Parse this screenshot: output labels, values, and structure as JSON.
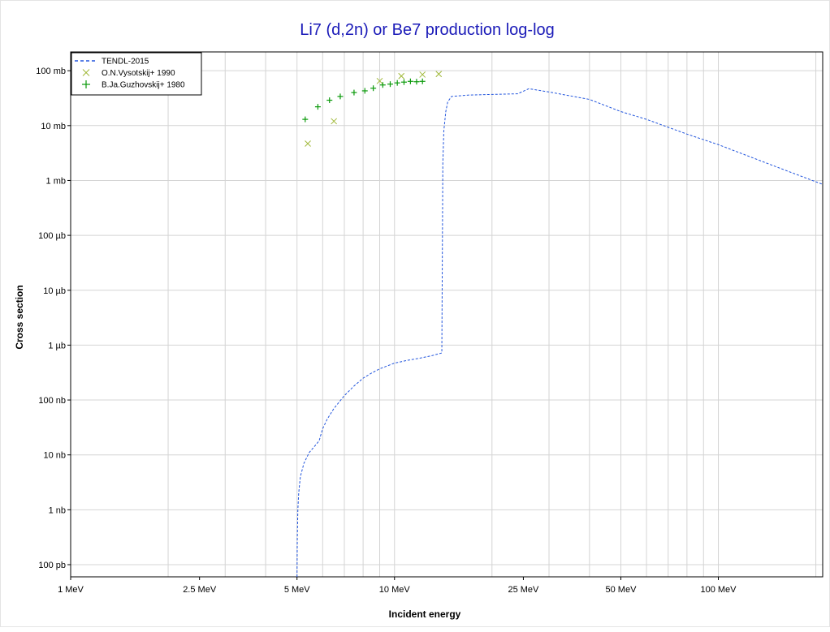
{
  "chart_data": {
    "type": "scatter",
    "title": "Li7 (d,2n) or Be7 production log-log",
    "xlabel": "Incident energy",
    "ylabel": "Cross section",
    "xscale": "log",
    "yscale": "log",
    "xlim_mev": [
      1,
      210
    ],
    "ylim_barn": [
      6e-11,
      0.22
    ],
    "grid": true,
    "legend_position": "top-left",
    "colors": {
      "tendl": "#2255dd",
      "vysotskij": "#a0b838",
      "guzhovskij": "#0a9a0a",
      "title": "#1a1ab8"
    },
    "x_ticks": [
      {
        "value": 1,
        "label": "1 MeV"
      },
      {
        "value": 2.5,
        "label": "2.5 MeV"
      },
      {
        "value": 5,
        "label": "5 MeV"
      },
      {
        "value": 10,
        "label": "10 MeV"
      },
      {
        "value": 25,
        "label": "25 MeV"
      },
      {
        "value": 50,
        "label": "50 MeV"
      },
      {
        "value": 100,
        "label": "100 MeV"
      }
    ],
    "y_ticks": [
      {
        "value": 1e-10,
        "label": "100 pb"
      },
      {
        "value": 1e-09,
        "label": "1 nb"
      },
      {
        "value": 1e-08,
        "label": "10 nb"
      },
      {
        "value": 1e-07,
        "label": "100 nb"
      },
      {
        "value": 1e-06,
        "label": "1 µb"
      },
      {
        "value": 1e-05,
        "label": "10 µb"
      },
      {
        "value": 0.0001,
        "label": "100 µb"
      },
      {
        "value": 0.001,
        "label": "1 mb"
      },
      {
        "value": 0.01,
        "label": "10 mb"
      },
      {
        "value": 0.1,
        "label": "100 mb"
      }
    ],
    "series": [
      {
        "name": "TENDL-2015",
        "style": "dashed-line",
        "points": [
          [
            5.0,
            6e-11
          ],
          [
            5.01,
            3e-10
          ],
          [
            5.03,
            1e-09
          ],
          [
            5.06,
            2e-09
          ],
          [
            5.12,
            4e-09
          ],
          [
            5.25,
            7e-09
          ],
          [
            5.45,
            1.1e-08
          ],
          [
            5.7,
            1.5e-08
          ],
          [
            5.85,
            1.8e-08
          ],
          [
            6.0,
            3e-08
          ],
          [
            6.2,
            4.5e-08
          ],
          [
            6.5,
            7e-08
          ],
          [
            7.0,
            1.2e-07
          ],
          [
            7.5,
            1.8e-07
          ],
          [
            8.0,
            2.5e-07
          ],
          [
            8.5,
            3.1e-07
          ],
          [
            9.0,
            3.7e-07
          ],
          [
            10.0,
            4.7e-07
          ],
          [
            11.0,
            5.3e-07
          ],
          [
            12.0,
            5.8e-07
          ],
          [
            13.0,
            6.4e-07
          ],
          [
            14.0,
            7.2e-07
          ],
          [
            14.1,
            0.002
          ],
          [
            14.2,
            0.008
          ],
          [
            14.4,
            0.018
          ],
          [
            14.6,
            0.027
          ],
          [
            15.0,
            0.034
          ],
          [
            17.0,
            0.036
          ],
          [
            20.0,
            0.037
          ],
          [
            24.0,
            0.038
          ],
          [
            26.0,
            0.047
          ],
          [
            30.0,
            0.041
          ],
          [
            40.0,
            0.03
          ],
          [
            50.0,
            0.018
          ],
          [
            60.0,
            0.013
          ],
          [
            80.0,
            0.007
          ],
          [
            100.0,
            0.0045
          ],
          [
            150.0,
            0.0018
          ],
          [
            210.0,
            0.00085
          ]
        ]
      },
      {
        "name": "O.N.Vysotskij+ 1990",
        "style": "x-marker",
        "points": [
          [
            5.4,
            0.0047
          ],
          [
            6.5,
            0.012
          ],
          [
            9.0,
            0.065
          ],
          [
            10.5,
            0.08
          ],
          [
            12.2,
            0.085
          ],
          [
            13.7,
            0.087
          ]
        ]
      },
      {
        "name": "B.Ja.Guzhovskij+ 1980",
        "style": "plus-marker",
        "points": [
          [
            5.3,
            0.013
          ],
          [
            5.8,
            0.022
          ],
          [
            6.3,
            0.029
          ],
          [
            6.8,
            0.034
          ],
          [
            7.5,
            0.04
          ],
          [
            8.1,
            0.043
          ],
          [
            8.6,
            0.048
          ],
          [
            9.2,
            0.055
          ],
          [
            9.7,
            0.057
          ],
          [
            10.2,
            0.06
          ],
          [
            10.7,
            0.062
          ],
          [
            11.2,
            0.064
          ],
          [
            11.7,
            0.063
          ],
          [
            12.2,
            0.064
          ]
        ]
      }
    ]
  }
}
